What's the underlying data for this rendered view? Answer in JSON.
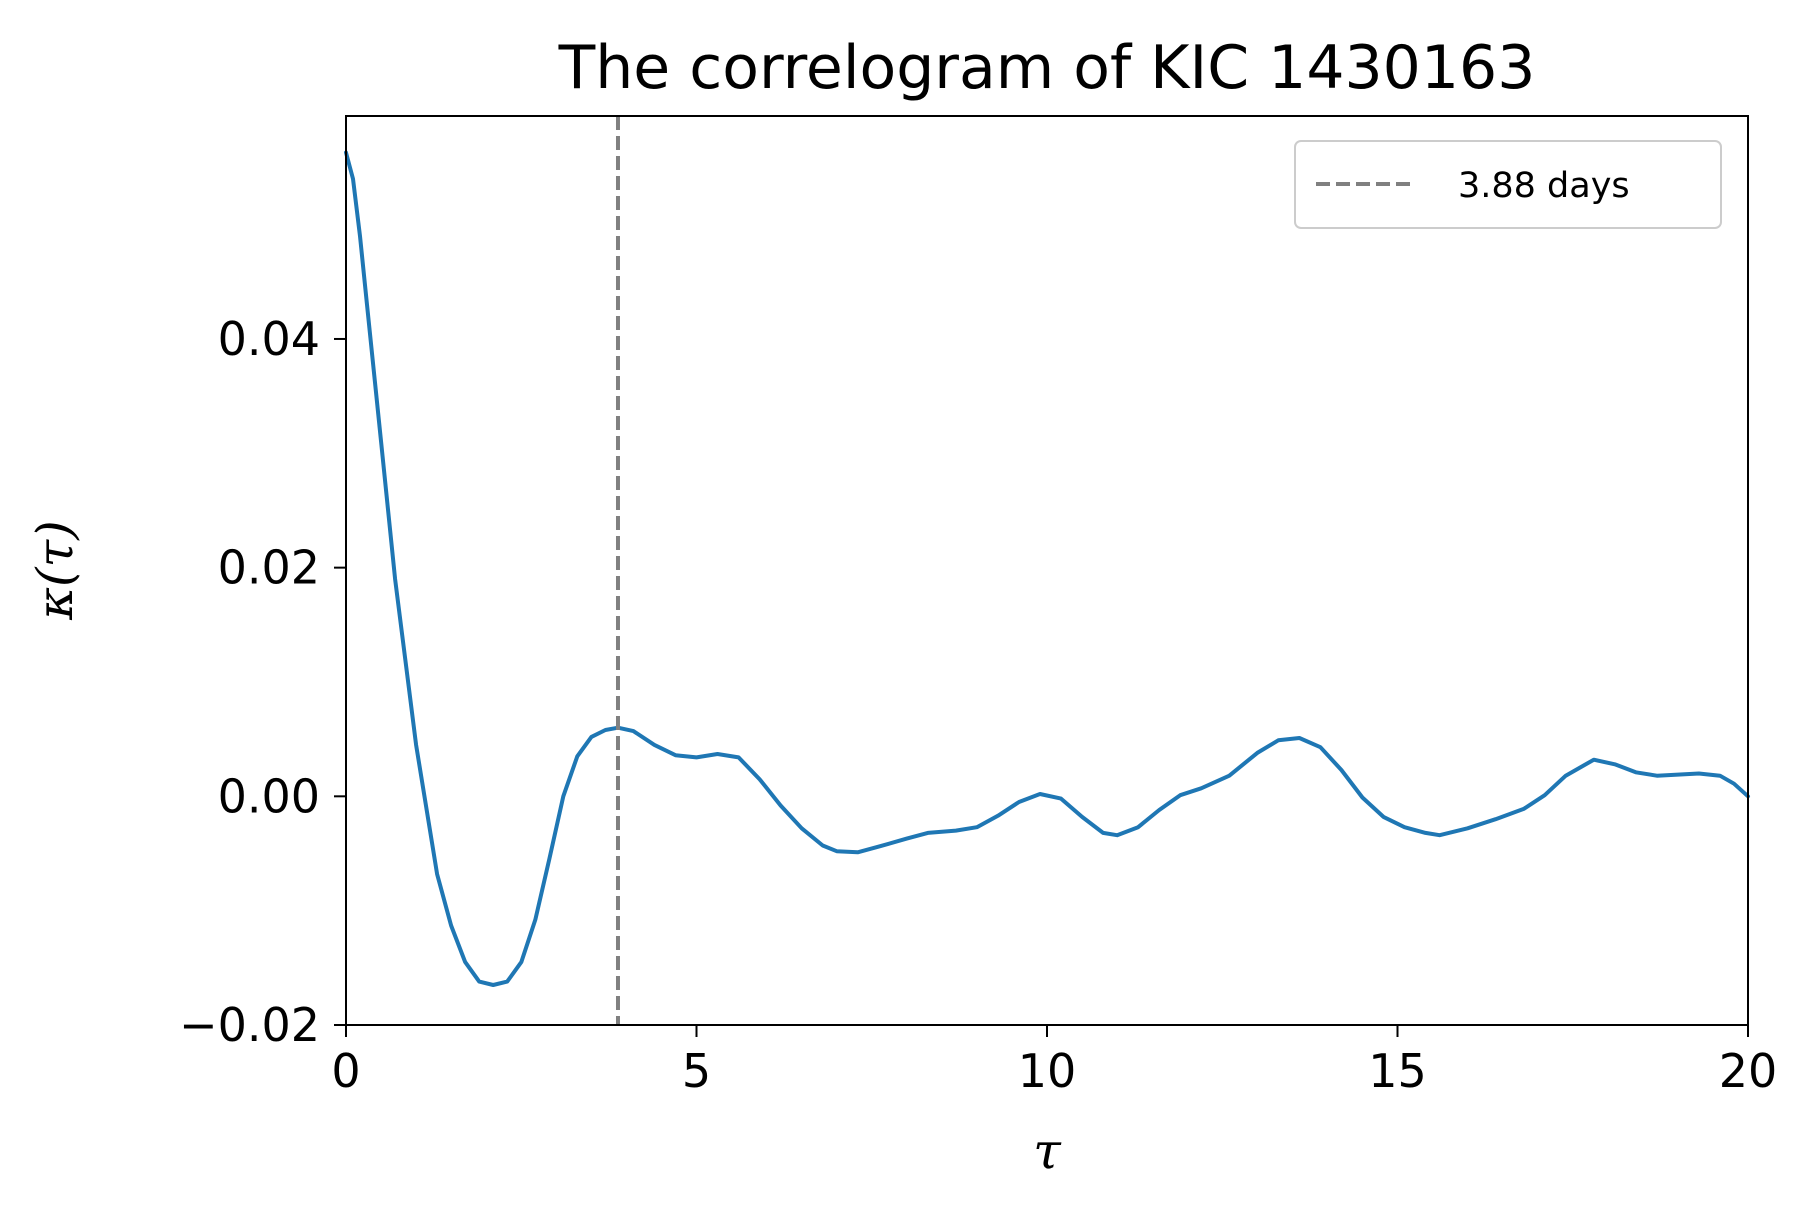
{
  "chart_data": {
    "type": "line",
    "title": "The correlogram of KIC 1430163",
    "xlabel": "τ",
    "ylabel": "κ(τ)",
    "xlim": [
      0,
      20
    ],
    "ylim": [
      -0.02,
      0.0595
    ],
    "x_ticks": [
      0,
      5,
      10,
      15,
      20
    ],
    "x_tick_labels": [
      "0",
      "5",
      "10",
      "15",
      "20"
    ],
    "y_ticks": [
      -0.02,
      0.0,
      0.02,
      0.04
    ],
    "y_tick_labels": [
      "−0.02",
      "0.00",
      "0.02",
      "0.04"
    ],
    "grid": false,
    "legend_position": "top-right",
    "series": [
      {
        "color": "#1f77b4",
        "x": [
          0,
          0.1,
          0.2,
          0.3,
          0.5,
          0.7,
          1.0,
          1.3,
          1.5,
          1.7,
          1.9,
          2.1,
          2.3,
          2.5,
          2.7,
          2.9,
          3.1,
          3.3,
          3.5,
          3.7,
          3.88,
          4.1,
          4.4,
          4.7,
          5.0,
          5.3,
          5.6,
          5.9,
          6.2,
          6.5,
          6.8,
          7.0,
          7.3,
          7.6,
          8.0,
          8.3,
          8.7,
          9.0,
          9.3,
          9.6,
          9.9,
          10.2,
          10.5,
          10.8,
          11.0,
          11.3,
          11.6,
          11.9,
          12.2,
          12.6,
          13.0,
          13.3,
          13.6,
          13.9,
          14.2,
          14.5,
          14.8,
          15.1,
          15.4,
          15.6,
          16.0,
          16.4,
          16.8,
          17.1,
          17.4,
          17.8,
          18.1,
          18.4,
          18.7,
          19.0,
          19.3,
          19.6,
          19.8,
          20.0
        ],
        "values": [
          0.0563,
          0.054,
          0.049,
          0.043,
          0.031,
          0.019,
          0.0045,
          -0.0068,
          -0.0113,
          -0.0145,
          -0.0162,
          -0.0165,
          -0.0162,
          -0.0145,
          -0.0108,
          -0.0055,
          0.0,
          0.0035,
          0.0052,
          0.0058,
          0.006,
          0.0057,
          0.0045,
          0.0036,
          0.0034,
          0.0037,
          0.0034,
          0.0015,
          -0.0008,
          -0.0028,
          -0.0043,
          -0.0048,
          -0.0049,
          -0.0044,
          -0.0037,
          -0.0032,
          -0.003,
          -0.0027,
          -0.0017,
          -0.0005,
          0.0002,
          -0.0002,
          -0.0018,
          -0.0032,
          -0.0034,
          -0.0027,
          -0.0012,
          0.0001,
          0.0007,
          0.0018,
          0.0038,
          0.0049,
          0.0051,
          0.0043,
          0.0023,
          -0.0001,
          -0.0018,
          -0.0027,
          -0.0032,
          -0.0034,
          -0.0028,
          -0.002,
          -0.0011,
          0.0001,
          0.0018,
          0.0032,
          0.0028,
          0.0021,
          0.0018,
          0.0019,
          0.002,
          0.0018,
          0.0011,
          0.0
        ]
      }
    ],
    "vlines": [
      {
        "x": 3.88,
        "color": "#808080",
        "style": "dashed",
        "label": "3.88 days"
      }
    ]
  }
}
